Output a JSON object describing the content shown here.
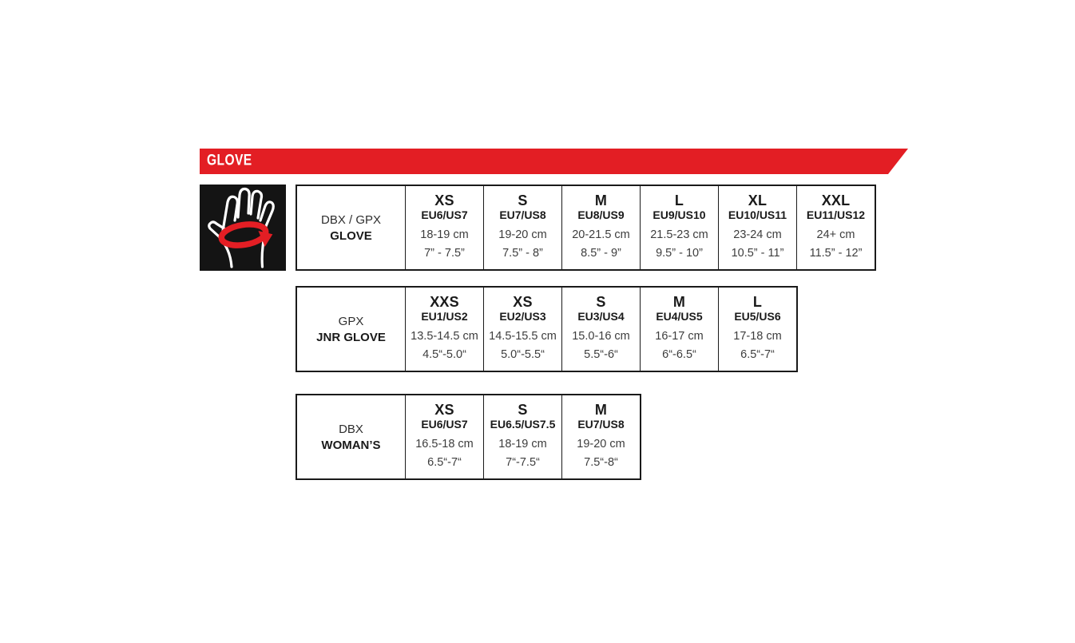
{
  "banner": {
    "label": "GLOVE"
  },
  "icon": {
    "name": "glove-hand-measure-icon"
  },
  "colors": {
    "accent_red": "#e31e24",
    "tile_black": "#141414",
    "border_black": "#1a1a1a",
    "text_bold": "#1a1a1a",
    "text_body": "#3d3d3d"
  },
  "chart_data": [
    {
      "type": "table",
      "label_line1": "DBX / GPX",
      "label_line2": "GLOVE",
      "columns": [
        {
          "size": "XS",
          "eu_us": "EU6/US7",
          "cm": "18-19 cm",
          "inches": "7” - 7.5”"
        },
        {
          "size": "S",
          "eu_us": "EU7/US8",
          "cm": "19-20 cm",
          "inches": "7.5” - 8”"
        },
        {
          "size": "M",
          "eu_us": "EU8/US9",
          "cm": "20-21.5 cm",
          "inches": "8.5” - 9”"
        },
        {
          "size": "L",
          "eu_us": "EU9/US10",
          "cm": "21.5-23 cm",
          "inches": "9.5” - 10”"
        },
        {
          "size": "XL",
          "eu_us": "EU10/US11",
          "cm": "23-24 cm",
          "inches": "10.5” - 11”"
        },
        {
          "size": "XXL",
          "eu_us": "EU11/US12",
          "cm": "24+ cm",
          "inches": "11.5” - 12”"
        }
      ]
    },
    {
      "type": "table",
      "label_line1": "GPX",
      "label_line2": "JNR GLOVE",
      "columns": [
        {
          "size": "XXS",
          "eu_us": "EU1/US2",
          "cm": "13.5-14.5 cm",
          "inches": "4.5“-5.0“"
        },
        {
          "size": "XS",
          "eu_us": "EU2/US3",
          "cm": "14.5-15.5 cm",
          "inches": "5.0“-5.5“"
        },
        {
          "size": "S",
          "eu_us": "EU3/US4",
          "cm": "15.0-16 cm",
          "inches": "5.5“-6“"
        },
        {
          "size": "M",
          "eu_us": "EU4/US5",
          "cm": "16-17 cm",
          "inches": "6“-6.5“"
        },
        {
          "size": "L",
          "eu_us": "EU5/US6",
          "cm": "17-18 cm",
          "inches": "6.5“-7“"
        }
      ]
    },
    {
      "type": "table",
      "label_line1": "DBX",
      "label_line2": "WOMAN’S",
      "columns": [
        {
          "size": "XS",
          "eu_us": "EU6/US7",
          "cm": "16.5-18 cm",
          "inches": "6.5“-7“"
        },
        {
          "size": "S",
          "eu_us": "EU6.5/US7.5",
          "cm": "18-19 cm",
          "inches": "7“-7.5“"
        },
        {
          "size": "M",
          "eu_us": "EU7/US8",
          "cm": "19-20 cm",
          "inches": "7.5“-8“"
        }
      ]
    }
  ]
}
